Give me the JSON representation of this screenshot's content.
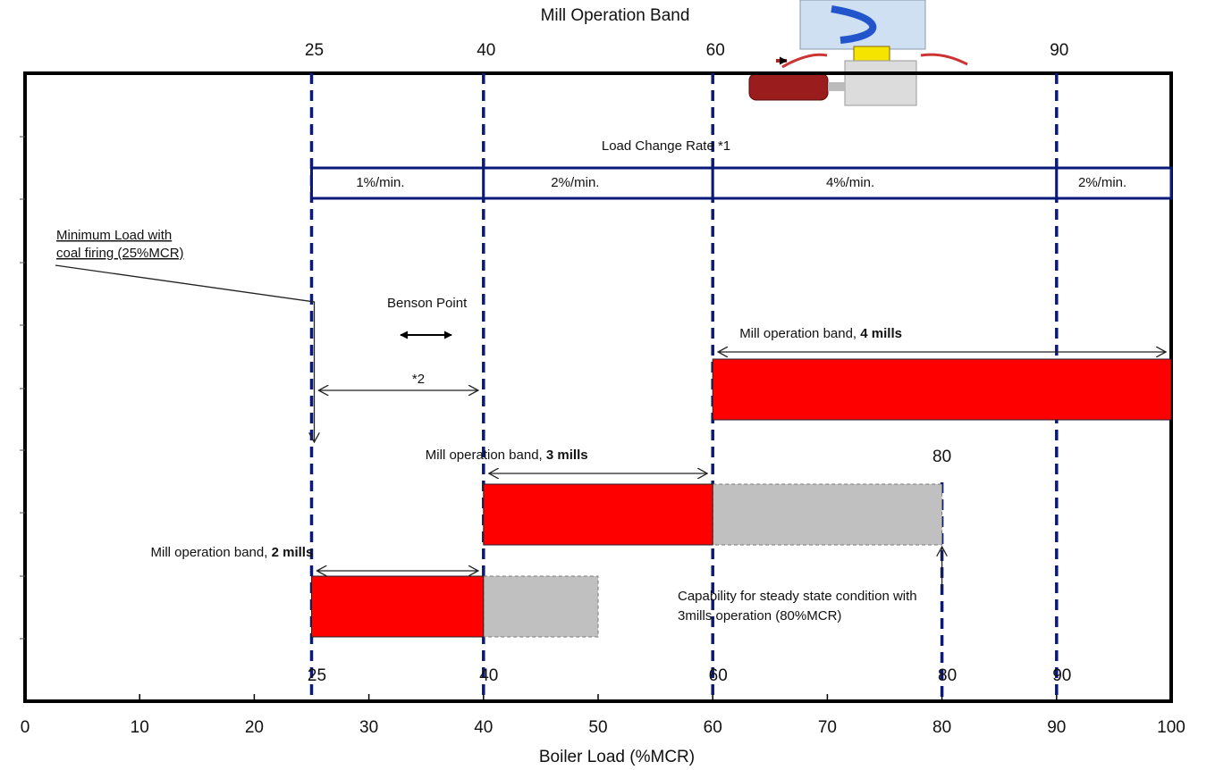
{
  "chart_data": {
    "type": "range-bar",
    "title": "Mill Operation Band",
    "xlabel": "Boiler Load (%MCR)",
    "xlim": [
      0,
      100
    ],
    "xticks": [
      0,
      10,
      20,
      30,
      40,
      50,
      60,
      70,
      80,
      90,
      100
    ],
    "reference_lines": [
      25,
      40,
      60,
      80,
      90
    ],
    "top_labels": [
      25,
      40,
      60,
      90
    ],
    "bottom_labels": [
      25,
      40,
      60,
      80,
      90
    ],
    "load_change_rate": {
      "title": "Load Change Rate *1",
      "segments": [
        {
          "start": 25,
          "end": 40,
          "label": "1%/min."
        },
        {
          "start": 40,
          "end": 60,
          "label": "2%/min."
        },
        {
          "start": 60,
          "end": 90,
          "label": "4%/min."
        },
        {
          "start": 90,
          "end": 100,
          "label": "2%/min."
        }
      ]
    },
    "color": "#ff0000",
    "ext_color": "#c0c0c0",
    "bands": [
      {
        "label": "Mill operation band, ",
        "label_bold": "4 mills",
        "start": 60,
        "end": 100
      },
      {
        "label": "Mill operation band, ",
        "label_bold": "3 mills",
        "start": 40,
        "end": 60,
        "ext_end": 80,
        "ext_label": 80
      },
      {
        "label": "Mill operation band, ",
        "label_bold": "2 mills",
        "start": 25,
        "end": 40,
        "ext_end": 50
      }
    ],
    "annotations": {
      "min_load": [
        "Minimum Load with",
        "coal firing (25%MCR)"
      ],
      "benson": "Benson Point",
      "star2": "*2",
      "capability": [
        "Capability for steady state condition with",
        "3mills operation (80%MCR)"
      ]
    }
  }
}
